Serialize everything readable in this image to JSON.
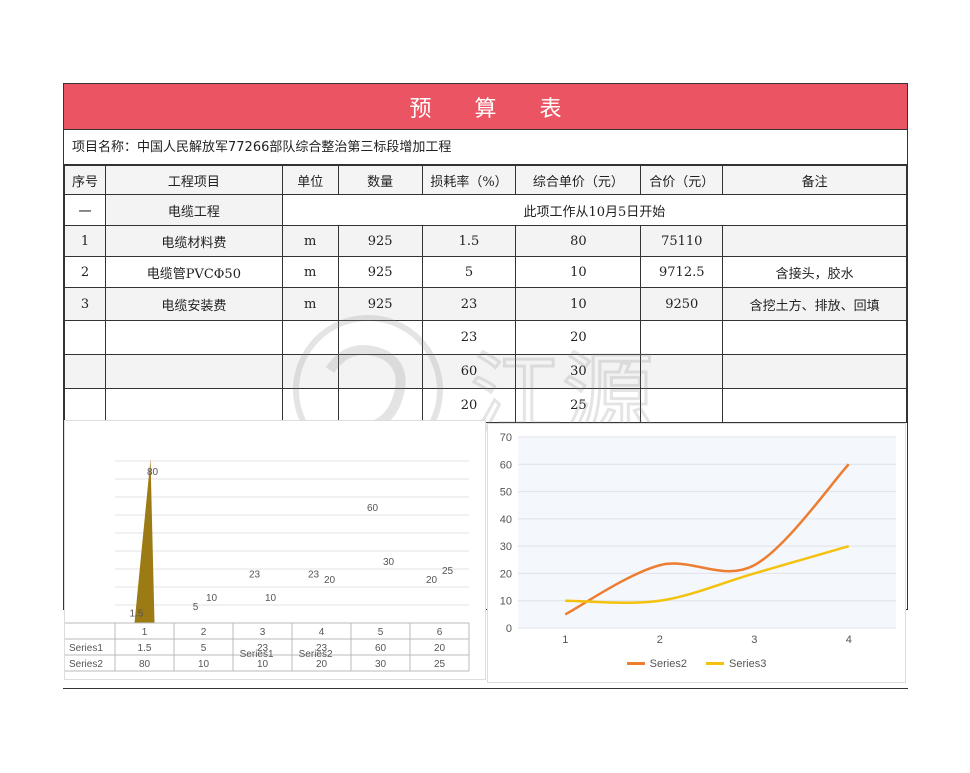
{
  "title": "预 算 表",
  "project_line": "项目名称：中国人民解放军77266部队综合整治第三标段增加工程",
  "headers": [
    "序号",
    "工程项目",
    "单位",
    "数量",
    "损耗率（%）",
    "综合单价（元）",
    "合价（元）",
    "备注"
  ],
  "section_row": {
    "no": "一",
    "item": "电缆工程",
    "note": "此项工作从10月5日开始"
  },
  "rows": [
    {
      "no": "1",
      "item": "电缆材料费",
      "unit": "m",
      "qty": "925",
      "loss": "1.5",
      "price": "80",
      "total": "75110",
      "remark": ""
    },
    {
      "no": "2",
      "item": "电缆管PVCΦ50",
      "unit": "m",
      "qty": "925",
      "loss": "5",
      "price": "10",
      "total": "9712.5",
      "remark": "含接头，胶水"
    },
    {
      "no": "3",
      "item": "电缆安装费",
      "unit": "m",
      "qty": "925",
      "loss": "23",
      "price": "10",
      "total": "9250",
      "remark": "含挖土方、排放、回填"
    },
    {
      "no": "",
      "item": "",
      "unit": "",
      "qty": "",
      "loss": "23",
      "price": "20",
      "total": "",
      "remark": ""
    },
    {
      "no": "",
      "item": "",
      "unit": "",
      "qty": "",
      "loss": "60",
      "price": "30",
      "total": "",
      "remark": ""
    },
    {
      "no": "",
      "item": "",
      "unit": "",
      "qty": "",
      "loss": "20",
      "price": "25",
      "total": "",
      "remark": ""
    }
  ],
  "watermark_text": "江源",
  "chart_data": [
    {
      "type": "area",
      "categories": [
        "1",
        "2",
        "3",
        "4",
        "5",
        "6"
      ],
      "series": [
        {
          "name": "Series1",
          "values": [
            1.5,
            5,
            23,
            23,
            60,
            20
          ],
          "color": "#4472c4"
        },
        {
          "name": "Series2",
          "values": [
            80,
            10,
            10,
            20,
            30,
            25
          ],
          "color": "#9c7a14"
        }
      ],
      "ylim": [
        0,
        90
      ],
      "grid": true,
      "data_table": true,
      "axis_labels_below": [
        "Series1",
        "Series2"
      ]
    },
    {
      "type": "line",
      "categories": [
        "1",
        "2",
        "3",
        "4"
      ],
      "series": [
        {
          "name": "Series2",
          "values": [
            5,
            23,
            23,
            60
          ],
          "color": "#ed7d31"
        },
        {
          "name": "Series3",
          "values": [
            10,
            10,
            20,
            30
          ],
          "color": "#f4c20d"
        }
      ],
      "ylim": [
        0,
        70
      ],
      "yticks": [
        0,
        10,
        20,
        30,
        40,
        50,
        60,
        70
      ],
      "grid": true,
      "legend": "bottom"
    }
  ]
}
